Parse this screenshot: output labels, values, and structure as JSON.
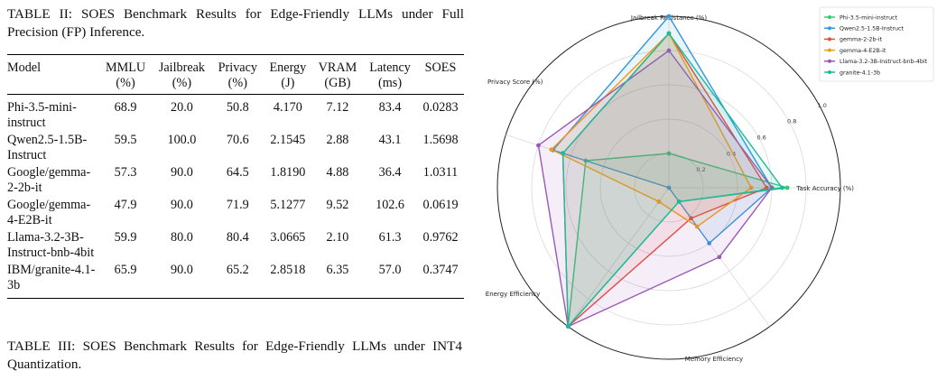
{
  "table2": {
    "caption": "TABLE II: SOES Benchmark Results for Edge-Friendly LLMs under Full Precision (FP) Inference.",
    "headers": [
      {
        "name": "Model",
        "unit": ""
      },
      {
        "name": "MMLU",
        "unit": "(%)"
      },
      {
        "name": "Jailbreak",
        "unit": "(%)"
      },
      {
        "name": "Privacy",
        "unit": "(%)"
      },
      {
        "name": "Energy",
        "unit": "(J)"
      },
      {
        "name": "VRAM",
        "unit": "(GB)"
      },
      {
        "name": "Latency",
        "unit": "(ms)"
      },
      {
        "name": "SOES",
        "unit": ""
      }
    ],
    "rows": [
      {
        "model": "Phi-3.5-mini-instruct",
        "mmlu": "68.9",
        "jailbreak": "20.0",
        "privacy": "50.8",
        "energy": "4.170",
        "vram": "7.12",
        "latency": "83.4",
        "soes": "0.0283"
      },
      {
        "model": "Qwen2.5-1.5B-Instruct",
        "mmlu": "59.5",
        "jailbreak": "100.0",
        "privacy": "70.6",
        "energy": "2.1545",
        "vram": "2.88",
        "latency": "43.1",
        "soes": "1.5698"
      },
      {
        "model": "Google/gemma-2-2b-it",
        "mmlu": "57.3",
        "jailbreak": "90.0",
        "privacy": "64.5",
        "energy": "1.8190",
        "vram": "4.88",
        "latency": "36.4",
        "soes": "1.0311"
      },
      {
        "model": "Google/gemma-4-E2B-it",
        "mmlu": "47.9",
        "jailbreak": "90.0",
        "privacy": "71.9",
        "energy": "5.1277",
        "vram": "9.52",
        "latency": "102.6",
        "soes": "0.0619"
      },
      {
        "model": "Llama-3.2-3B-Instruct-bnb-4bit",
        "mmlu": "59.9",
        "jailbreak": "80.0",
        "privacy": "80.4",
        "energy": "3.0665",
        "vram": "2.10",
        "latency": "61.3",
        "soes": "0.9762"
      },
      {
        "model": "IBM/granite-4.1-3b",
        "mmlu": "65.9",
        "jailbreak": "90.0",
        "privacy": "65.2",
        "energy": "2.8518",
        "vram": "6.35",
        "latency": "57.0",
        "soes": "0.3747"
      }
    ]
  },
  "table3": {
    "caption": "TABLE III: SOES Benchmark Results for Edge-Friendly LLMs under INT4 Quantization."
  },
  "chart_data": {
    "type": "radar",
    "axes": [
      "Task Accuracy (%)",
      "Jailbreak Resistance (%)",
      "Privacy Score (%)",
      "Energy Efficiency",
      "Memory Efficiency"
    ],
    "rlim": [
      0,
      1.0
    ],
    "ticks": [
      "0.2",
      "0.4",
      "0.6",
      "0.8",
      "1.0"
    ],
    "legend_position": "top-right",
    "series": [
      {
        "name": "Phi-3.5-mini-instruct",
        "color": "#2ecc71",
        "values": [
          0.69,
          0.2,
          0.51,
          1.0,
          0.1
        ]
      },
      {
        "name": "Qwen2.5-1.5B-Instruct",
        "color": "#3498db",
        "values": [
          0.6,
          1.0,
          0.71,
          0.0,
          0.4
        ]
      },
      {
        "name": "gemma-2-2b-it",
        "color": "#e74c3c",
        "values": [
          0.57,
          0.9,
          0.65,
          1.0,
          0.22
        ]
      },
      {
        "name": "gemma-4-E2B-it",
        "color": "#f39c12",
        "values": [
          0.48,
          0.9,
          0.72,
          0.1,
          0.28
        ]
      },
      {
        "name": "Llama-3.2-3B-Instruct-bnb-4bit",
        "color": "#9b59b6",
        "values": [
          0.6,
          0.8,
          0.8,
          1.0,
          0.5
        ]
      },
      {
        "name": "granite-4.1-3b",
        "color": "#1abc9c",
        "values": [
          0.66,
          0.9,
          0.65,
          1.0,
          0.1
        ]
      }
    ]
  }
}
